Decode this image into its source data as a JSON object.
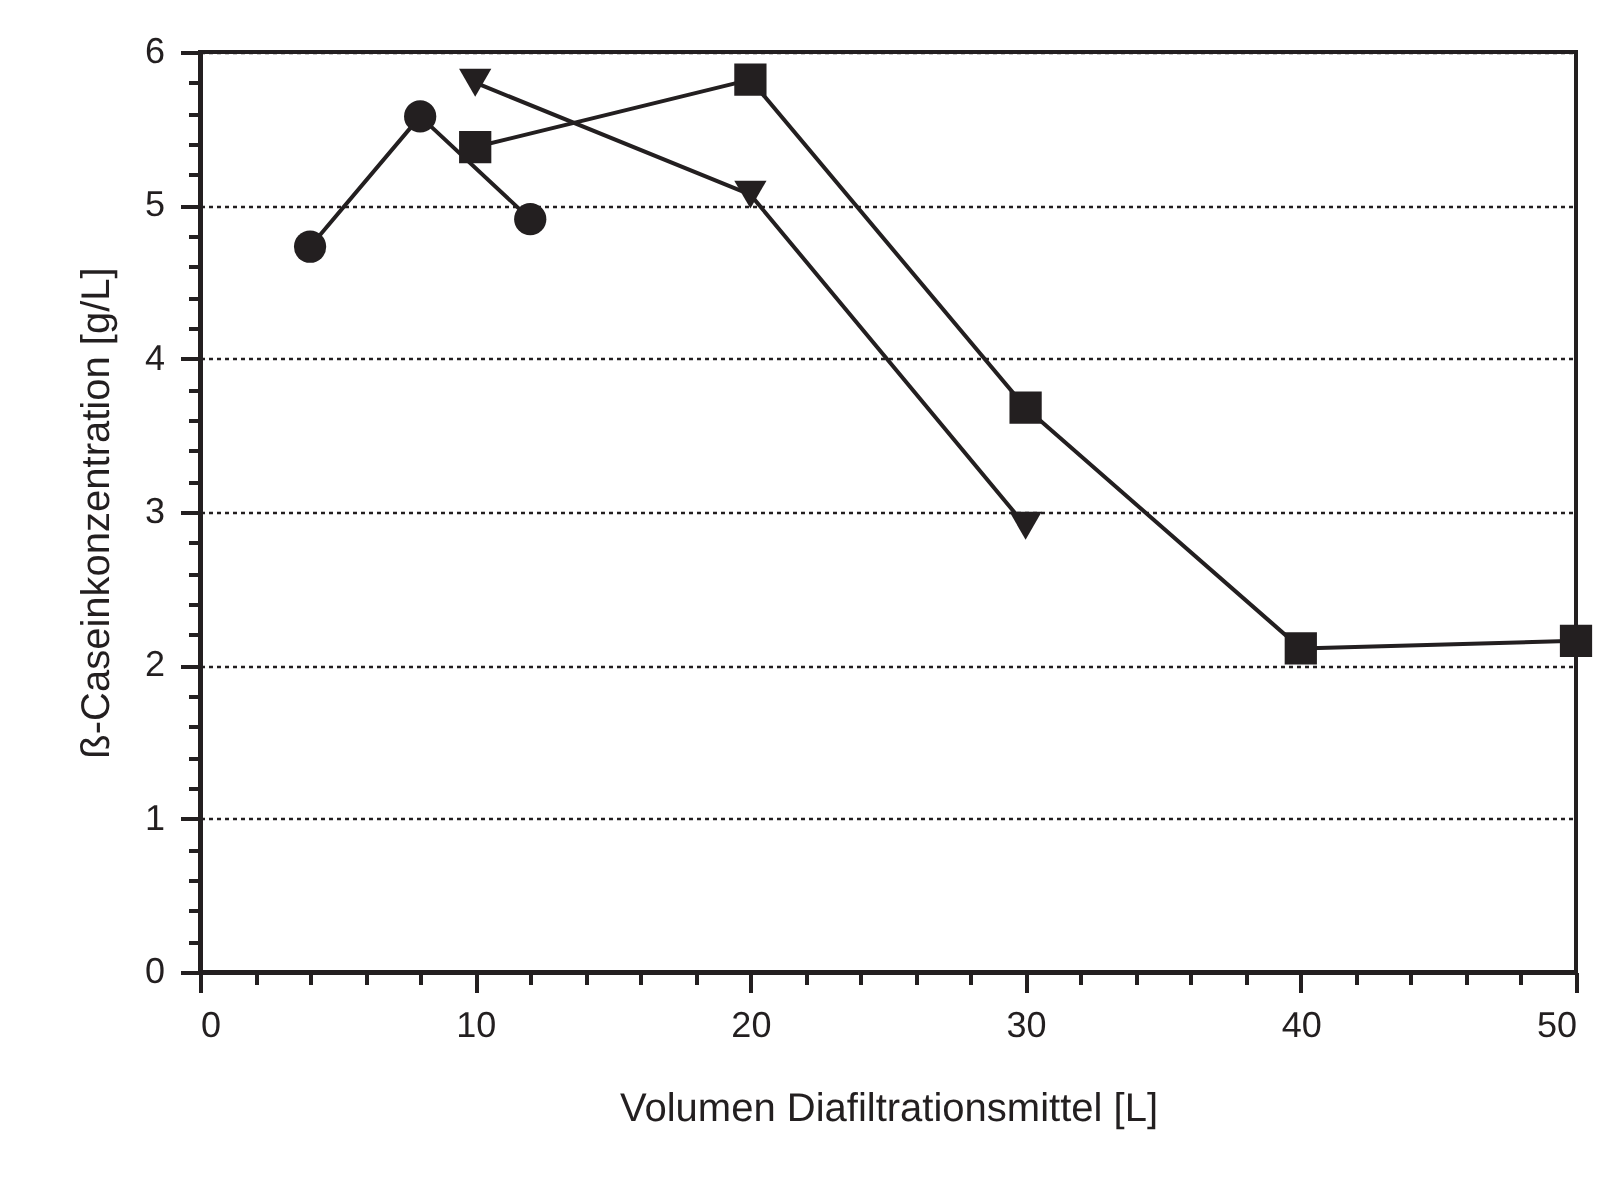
{
  "chart_data": {
    "type": "line",
    "xlabel": "Volumen Diafiltrationsmittel [L]",
    "ylabel": "ß-Caseinkonzentration [g/L]",
    "xlim": [
      0,
      50
    ],
    "ylim": [
      0,
      6
    ],
    "xticks": [
      0,
      {
        "value": 2,
        "label": null
      },
      {
        "value": 4,
        "label": null
      },
      {
        "value": 6,
        "label": null
      },
      {
        "value": 8,
        "label": null
      },
      10,
      {
        "value": 12,
        "label": null
      },
      {
        "value": 14,
        "label": null
      },
      {
        "value": 16,
        "label": null
      },
      {
        "value": 18,
        "label": null
      },
      20,
      {
        "value": 22,
        "label": null
      },
      {
        "value": 24,
        "label": null
      },
      {
        "value": 26,
        "label": null
      },
      {
        "value": 28,
        "label": null
      },
      30,
      {
        "value": 32,
        "label": null
      },
      {
        "value": 34,
        "label": null
      },
      {
        "value": 36,
        "label": null
      },
      {
        "value": 38,
        "label": null
      },
      40,
      {
        "value": 42,
        "label": null
      },
      {
        "value": 44,
        "label": null
      },
      {
        "value": 46,
        "label": null
      },
      {
        "value": 48,
        "label": null
      },
      50
    ],
    "yticks": [
      0,
      {
        "value": 0.2,
        "label": null
      },
      {
        "value": 0.4,
        "label": null
      },
      {
        "value": 0.6,
        "label": null
      },
      {
        "value": 0.8,
        "label": null
      },
      1,
      {
        "value": 1.2,
        "label": null
      },
      {
        "value": 1.4,
        "label": null
      },
      {
        "value": 1.6,
        "label": null
      },
      {
        "value": 1.8,
        "label": null
      },
      2,
      {
        "value": 2.2,
        "label": null
      },
      {
        "value": 2.4,
        "label": null
      },
      {
        "value": 2.6,
        "label": null
      },
      {
        "value": 2.8,
        "label": null
      },
      3,
      {
        "value": 3.2,
        "label": null
      },
      {
        "value": 3.4,
        "label": null
      },
      {
        "value": 3.6,
        "label": null
      },
      {
        "value": 3.8,
        "label": null
      },
      4,
      {
        "value": 4.2,
        "label": null
      },
      {
        "value": 4.4,
        "label": null
      },
      {
        "value": 4.6,
        "label": null
      },
      {
        "value": 4.8,
        "label": null
      },
      5,
      {
        "value": 5.2,
        "label": null
      },
      {
        "value": 5.4,
        "label": null
      },
      {
        "value": 5.6,
        "label": null
      },
      {
        "value": 5.8,
        "label": null
      },
      6
    ],
    "grid": "y",
    "line_style": "solid",
    "series": [
      {
        "color": "#231f20",
        "marker": "circle",
        "x": [
          4,
          8,
          12
        ],
        "values": [
          4.73,
          5.58,
          4.91
        ]
      },
      {
        "color": "#231f20",
        "marker": "square",
        "x": [
          10,
          20,
          30,
          40,
          50
        ],
        "values": [
          5.38,
          5.82,
          3.68,
          2.11,
          2.16
        ]
      },
      {
        "color": "#231f20",
        "marker": "triangle",
        "x": [
          10,
          20,
          30
        ],
        "values": [
          5.8,
          5.07,
          2.91
        ]
      }
    ]
  }
}
